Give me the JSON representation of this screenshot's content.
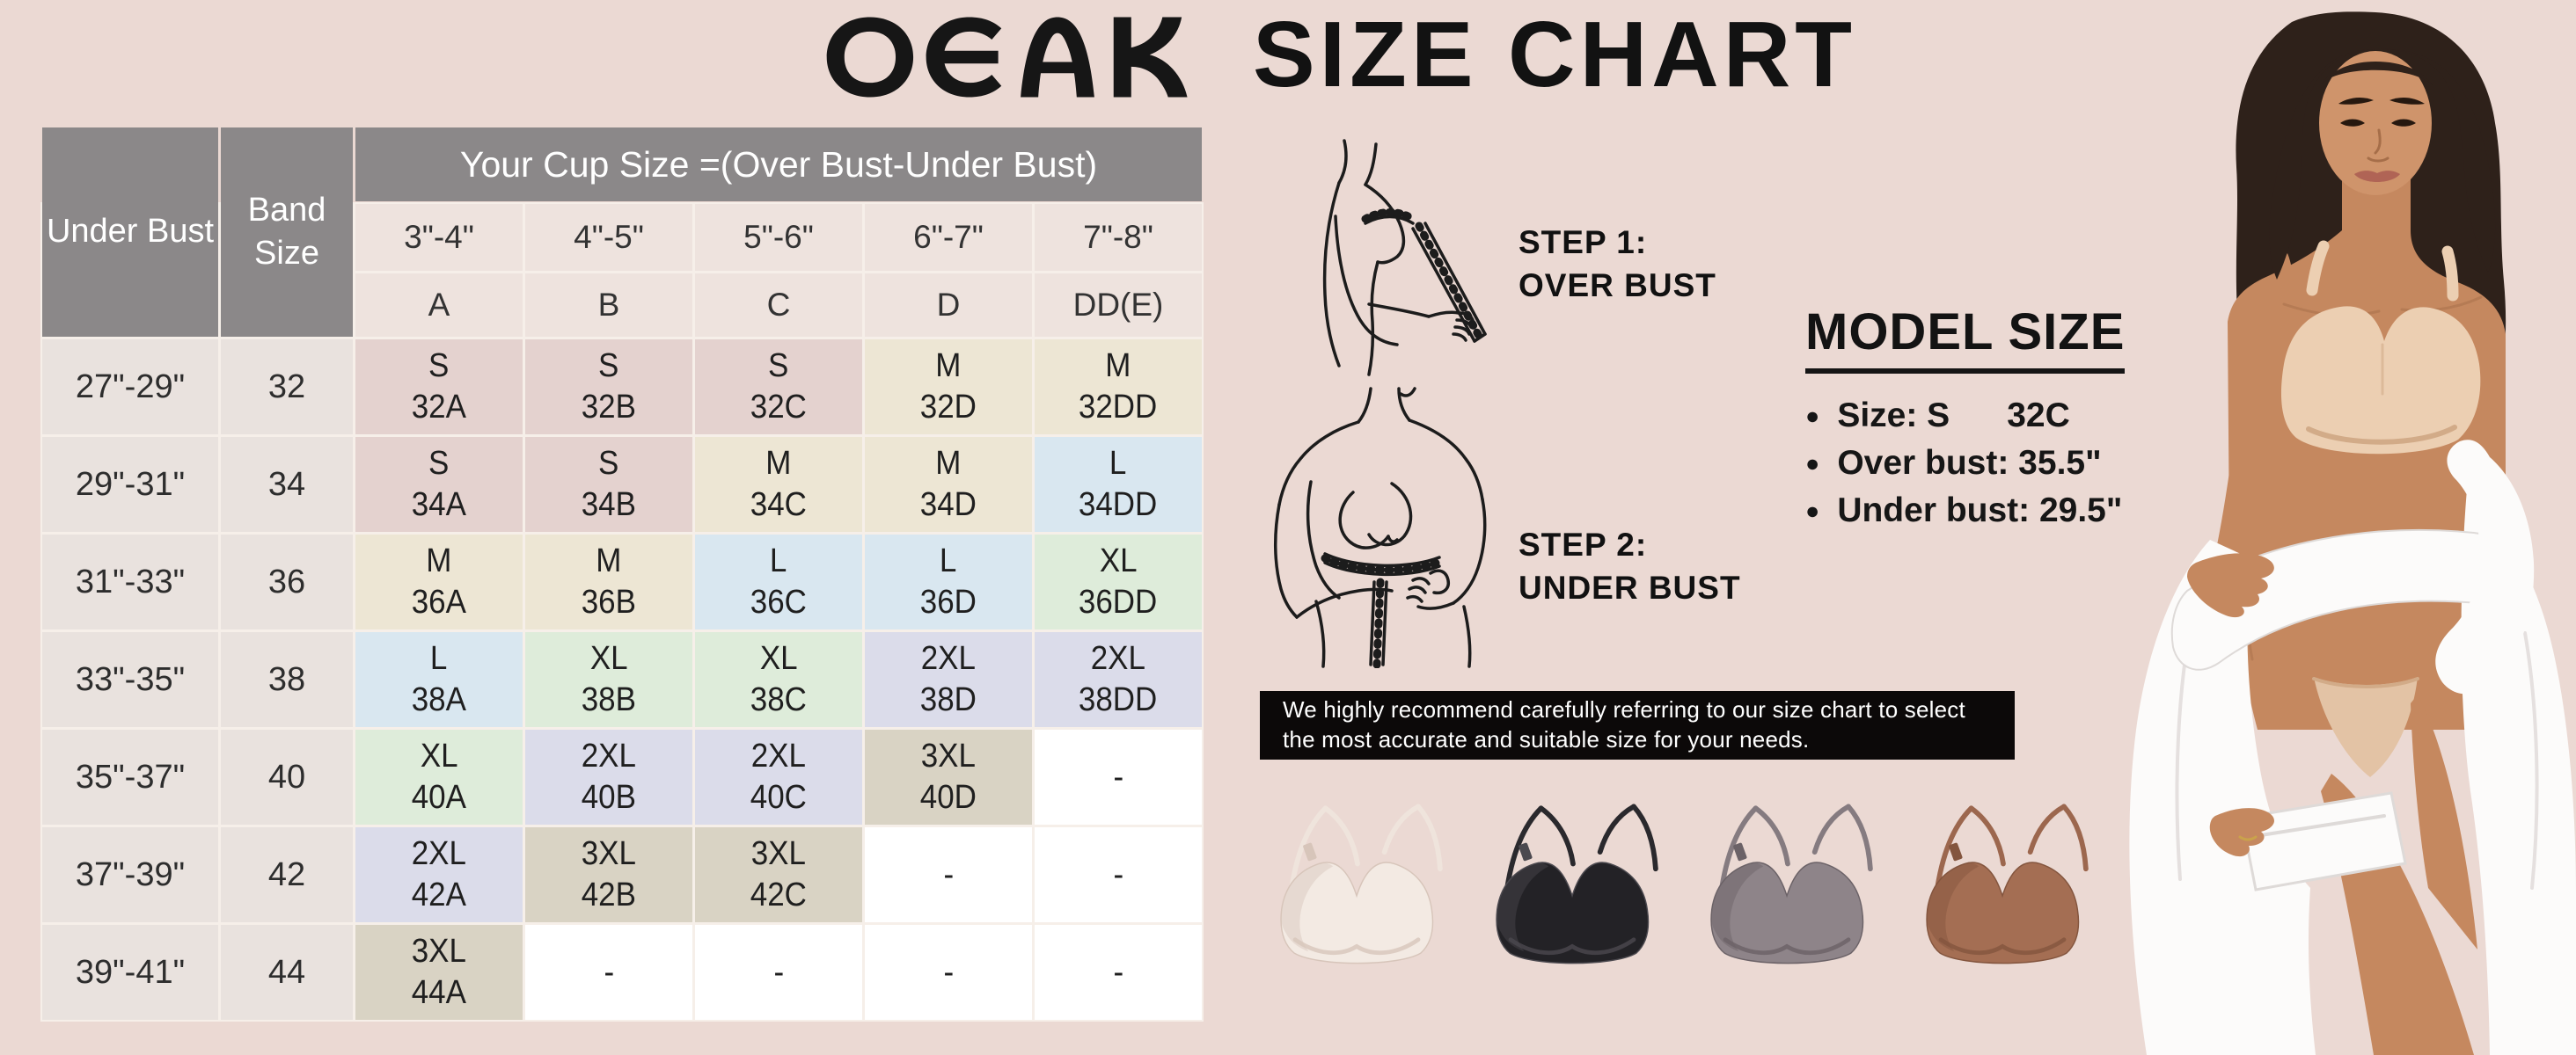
{
  "brand": {
    "logo": "OEAK"
  },
  "title": "SIZE CHART",
  "table": {
    "corner_headers": [
      "Under Bust",
      "Band Size"
    ],
    "cup_header": "Your Cup Size =(Over Bust-Under Bust)",
    "cup_ranges": [
      "3\"-4\"",
      "4\"-5\"",
      "5\"-6\"",
      "6\"-7\"",
      "7\"-8\""
    ],
    "cup_letters": [
      "A",
      "B",
      "C",
      "D",
      "DD(E)"
    ],
    "size_colors": {
      "S": "#e4d2cf",
      "M": "#ede6d4",
      "L": "#d9e7f0",
      "XL": "#deecda",
      "2XL": "#dbdcea",
      "3XL": "#d9d3c4",
      "-": "#ffffff"
    },
    "rows": [
      {
        "under_bust": "27\"-29\"",
        "band": "32",
        "cells": [
          {
            "size": "S",
            "code": "32A"
          },
          {
            "size": "S",
            "code": "32B"
          },
          {
            "size": "S",
            "code": "32C"
          },
          {
            "size": "M",
            "code": "32D"
          },
          {
            "size": "M",
            "code": "32DD"
          }
        ]
      },
      {
        "under_bust": "29\"-31\"",
        "band": "34",
        "cells": [
          {
            "size": "S",
            "code": "34A"
          },
          {
            "size": "S",
            "code": "34B"
          },
          {
            "size": "M",
            "code": "34C"
          },
          {
            "size": "M",
            "code": "34D"
          },
          {
            "size": "L",
            "code": "34DD"
          }
        ]
      },
      {
        "under_bust": "31\"-33\"",
        "band": "36",
        "cells": [
          {
            "size": "M",
            "code": "36A"
          },
          {
            "size": "M",
            "code": "36B"
          },
          {
            "size": "L",
            "code": "36C"
          },
          {
            "size": "L",
            "code": "36D"
          },
          {
            "size": "XL",
            "code": "36DD"
          }
        ]
      },
      {
        "under_bust": "33\"-35\"",
        "band": "38",
        "cells": [
          {
            "size": "L",
            "code": "38A"
          },
          {
            "size": "XL",
            "code": "38B"
          },
          {
            "size": "XL",
            "code": "38C"
          },
          {
            "size": "2XL",
            "code": "38D"
          },
          {
            "size": "2XL",
            "code": "38DD"
          }
        ]
      },
      {
        "under_bust": "35\"-37\"",
        "band": "40",
        "cells": [
          {
            "size": "XL",
            "code": "40A"
          },
          {
            "size": "2XL",
            "code": "40B"
          },
          {
            "size": "2XL",
            "code": "40C"
          },
          {
            "size": "3XL",
            "code": "40D"
          },
          {
            "size": "-",
            "code": ""
          }
        ]
      },
      {
        "under_bust": "37\"-39\"",
        "band": "42",
        "cells": [
          {
            "size": "2XL",
            "code": "42A"
          },
          {
            "size": "3XL",
            "code": "42B"
          },
          {
            "size": "3XL",
            "code": "42C"
          },
          {
            "size": "-",
            "code": ""
          },
          {
            "size": "-",
            "code": ""
          }
        ]
      },
      {
        "under_bust": "39\"-41\"",
        "band": "44",
        "cells": [
          {
            "size": "3XL",
            "code": "44A"
          },
          {
            "size": "-",
            "code": ""
          },
          {
            "size": "-",
            "code": ""
          },
          {
            "size": "-",
            "code": ""
          },
          {
            "size": "-",
            "code": ""
          }
        ]
      }
    ]
  },
  "chart_data": {
    "type": "table",
    "title": "OEAK SIZE CHART",
    "columns": [
      "Under Bust",
      "Band Size",
      "A (3\"-4\")",
      "B (4\"-5\")",
      "C (5\"-6\")",
      "D (6\"-7\")",
      "DD(E) (7\"-8\")"
    ],
    "rows": [
      [
        "27\"-29\"",
        "32",
        "S 32A",
        "S 32B",
        "S 32C",
        "M 32D",
        "M 32DD"
      ],
      [
        "29\"-31\"",
        "34",
        "S 34A",
        "S 34B",
        "M 34C",
        "M 34D",
        "L 34DD"
      ],
      [
        "31\"-33\"",
        "36",
        "M 36A",
        "M 36B",
        "L 36C",
        "L 36D",
        "XL 36DD"
      ],
      [
        "33\"-35\"",
        "38",
        "L 38A",
        "XL 38B",
        "XL 38C",
        "2XL 38D",
        "2XL 38DD"
      ],
      [
        "35\"-37\"",
        "40",
        "XL 40A",
        "2XL 40B",
        "2XL 40C",
        "3XL 40D",
        "-"
      ],
      [
        "37\"-39\"",
        "42",
        "2XL 42A",
        "3XL 42B",
        "3XL 42C",
        "-",
        "-"
      ],
      [
        "39\"-41\"",
        "44",
        "3XL 44A",
        "-",
        "-",
        "-",
        "-"
      ]
    ]
  },
  "steps": [
    {
      "line1": "STEP 1:",
      "line2": "OVER BUST"
    },
    {
      "line1": "STEP 2:",
      "line2": "UNDER BUST"
    }
  ],
  "model_size": {
    "title": "MODEL SIZE",
    "items": [
      "Size: S      32C",
      "Over bust: 35.5\"",
      "Under bust: 29.5\""
    ]
  },
  "banner": {
    "line1": "We highly recommend carefully referring to our size chart to select",
    "line2": "the most accurate and suitable size for your needs."
  },
  "products": [
    {
      "name": "bra-ivory",
      "main": "#f3eae3",
      "shade": "#d7c5ba",
      "strap": "#efe4dc"
    },
    {
      "name": "bra-black",
      "main": "#232226",
      "shade": "#4b494f",
      "strap": "#2a292d"
    },
    {
      "name": "bra-gray",
      "main": "#8e8489",
      "shade": "#6b6267",
      "strap": "#857b80"
    },
    {
      "name": "bra-brown",
      "main": "#a46e53",
      "shade": "#83553e",
      "strap": "#9c674e"
    }
  ],
  "model_illustration": {
    "colors": {
      "skin": "#c5885f",
      "skin2": "#cf946b",
      "skin3": "#a66e49",
      "hair": "#2e211a",
      "hair2": "#52392a",
      "brow": "#26180f",
      "lips": "#b06455",
      "bra": "#eccfb2",
      "bra2": "#d2ab88",
      "shirt": "#fcfbfa",
      "shirt2": "#dedad8",
      "under": "#e3c3a5"
    }
  }
}
